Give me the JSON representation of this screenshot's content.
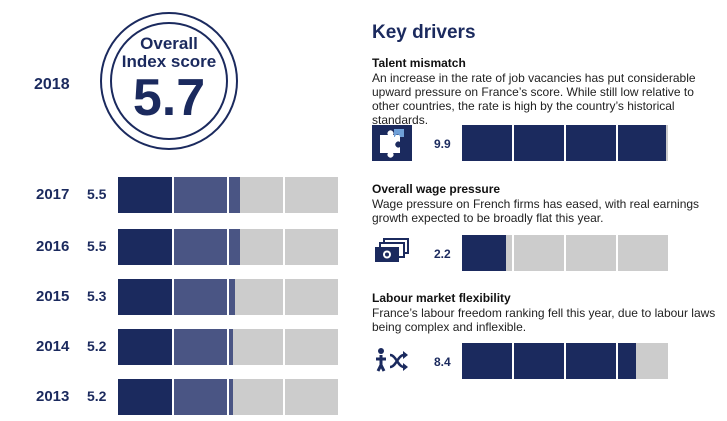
{
  "overall": {
    "year": "2018",
    "title_line1": "Overall",
    "title_line2": "Index score",
    "score": "5.7"
  },
  "history": [
    {
      "year": "2017",
      "score": "5.5",
      "value": 5.5
    },
    {
      "year": "2016",
      "score": "5.5",
      "value": 5.5
    },
    {
      "year": "2015",
      "score": "5.3",
      "value": 5.3
    },
    {
      "year": "2014",
      "score": "5.2",
      "value": 5.2
    },
    {
      "year": "2013",
      "score": "5.2",
      "value": 5.2
    }
  ],
  "key_drivers": {
    "heading": "Key drivers",
    "items": [
      {
        "title": "Talent mismatch",
        "description": "An increase in the rate of job vacancies has put considerable upward pressure on France’s score. While still low relative to other countries, the rate is high by the country’s historical standards.",
        "score": "9.9",
        "value": 9.9,
        "icon": "puzzle-icon"
      },
      {
        "title": "Overall wage pressure",
        "description": "Wage pressure on French firms has eased, with real earnings growth expected to be broadly flat this year.",
        "score": "2.2",
        "value": 2.2,
        "icon": "money-icon"
      },
      {
        "title": "Labour market flexibility",
        "description": "France’s labour freedom ranking fell this year, due to labour laws being complex and inflexible.",
        "score": "8.4",
        "value": 8.4,
        "icon": "flexibility-icon"
      }
    ]
  },
  "scale_max": 10,
  "colors": {
    "navy": "#1b2a5e",
    "mid": "#4a5584",
    "grey": "#cccccc",
    "white": "#ffffff"
  }
}
